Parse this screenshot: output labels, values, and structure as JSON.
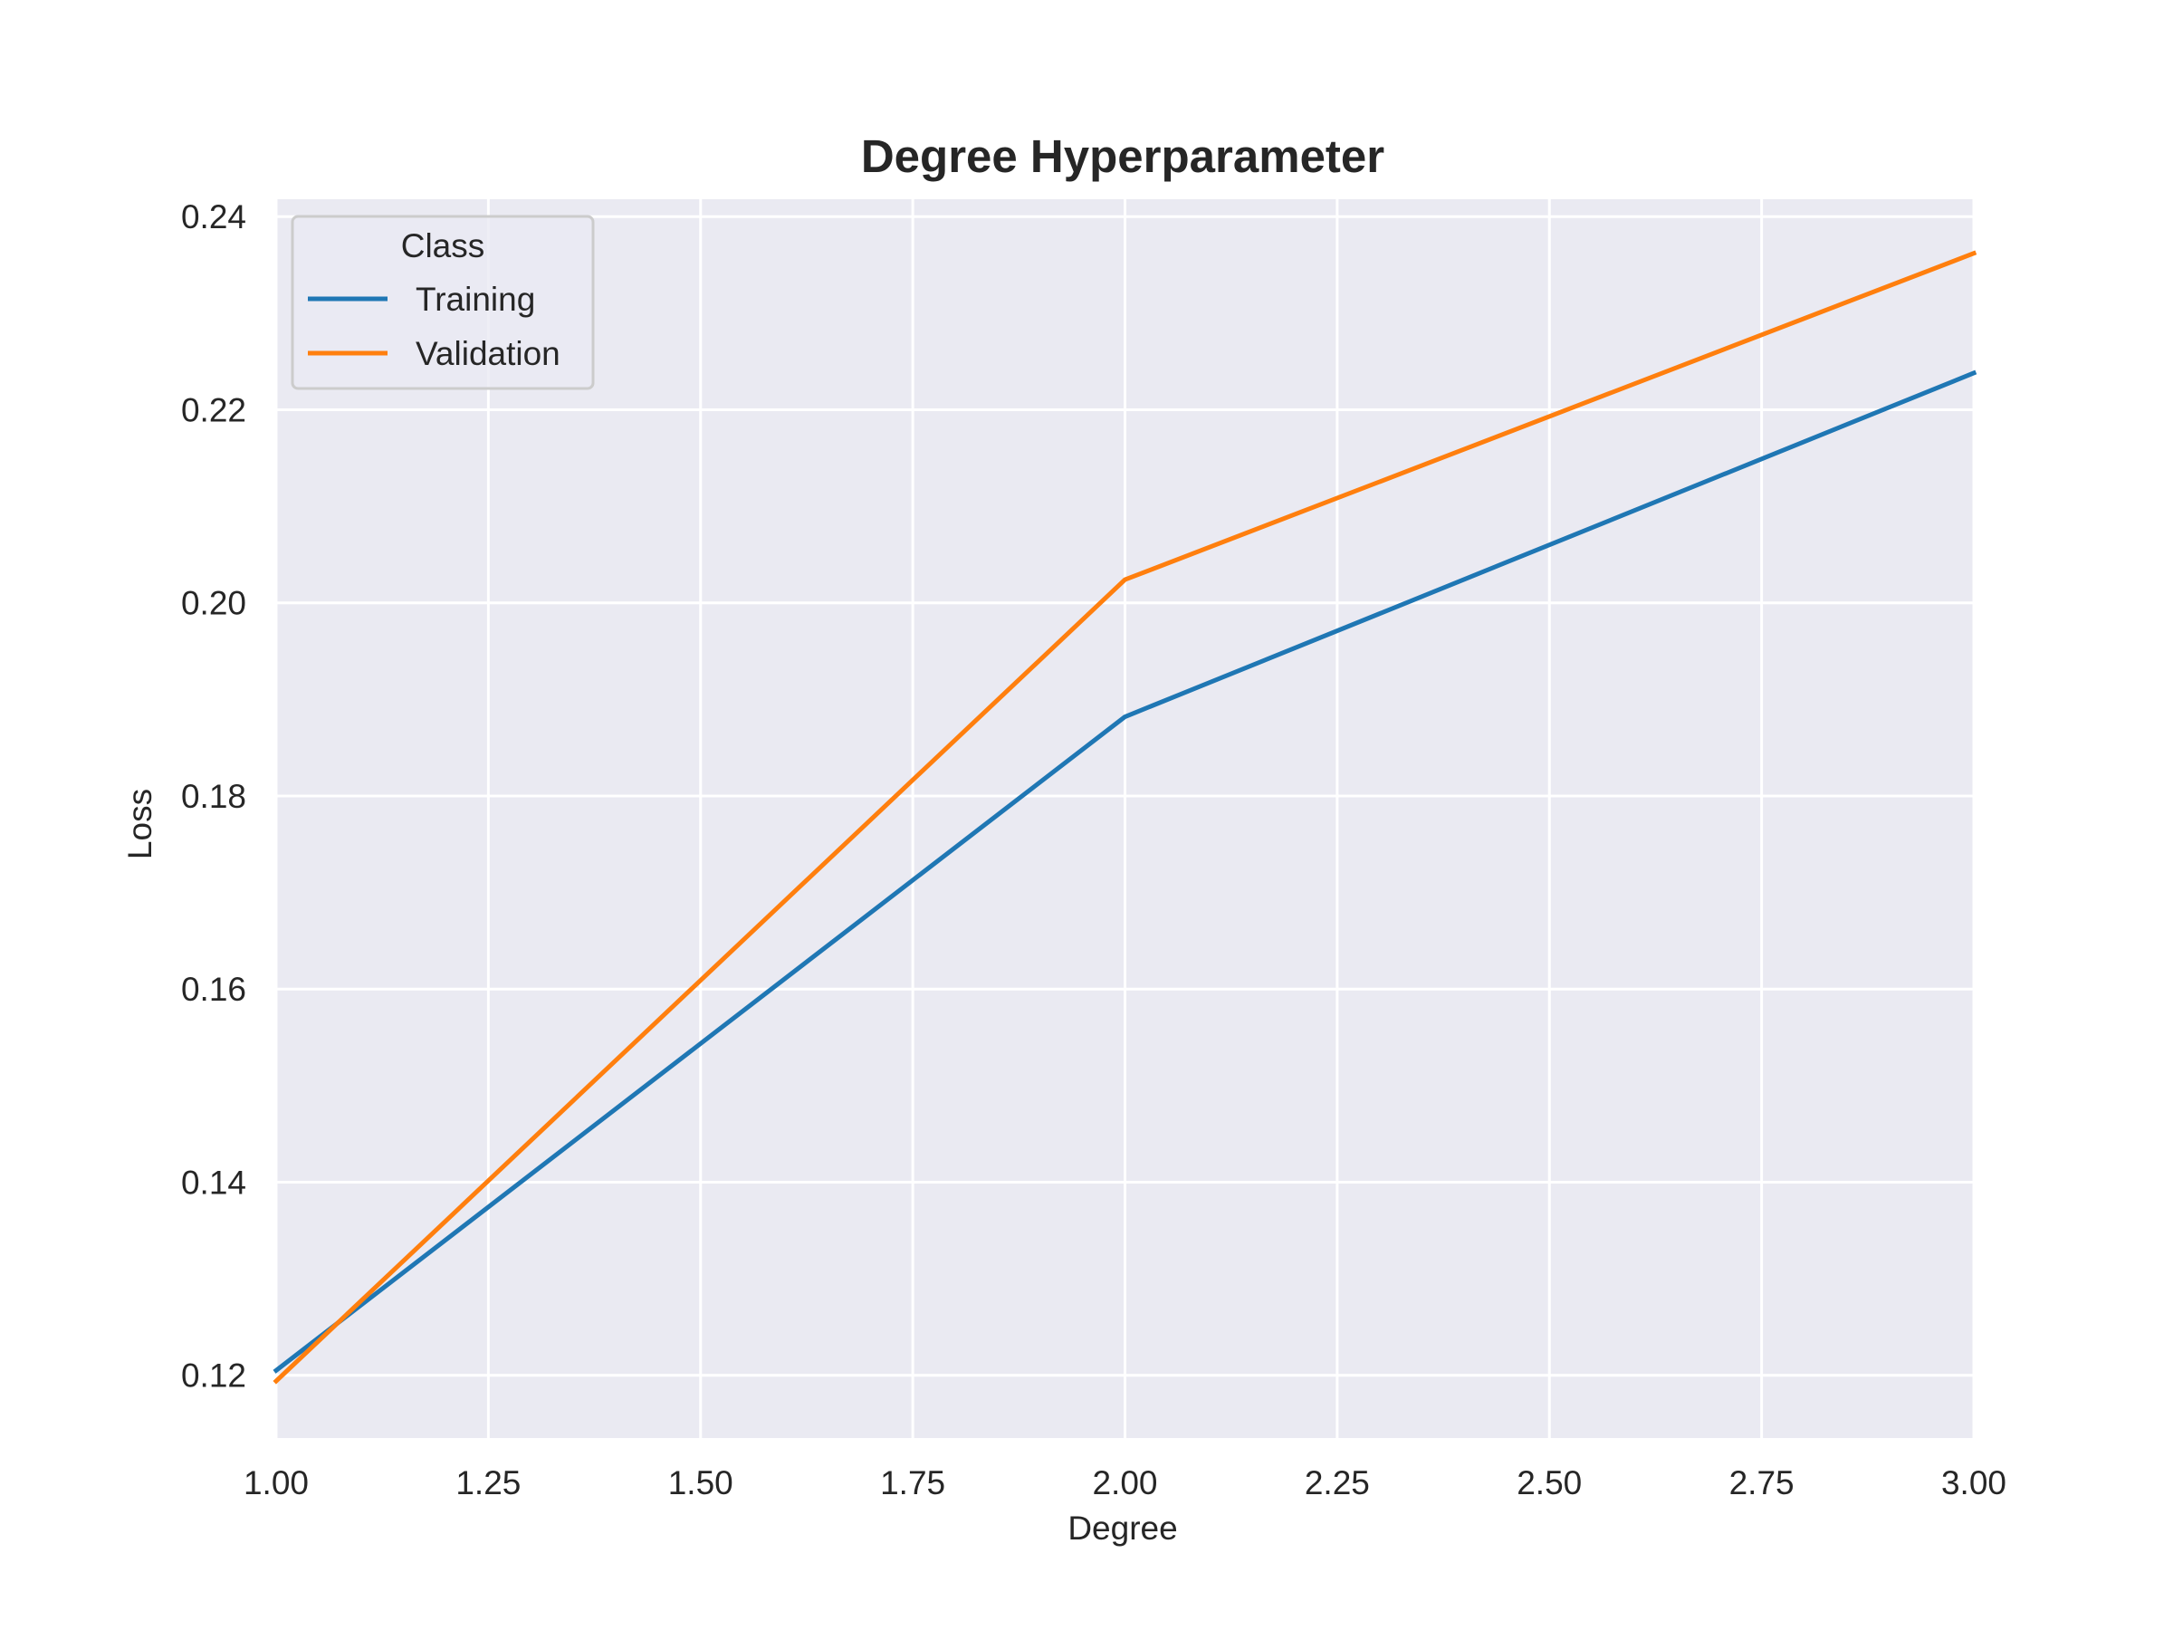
{
  "chart_data": {
    "type": "line",
    "title": "Degree Hyperparameter",
    "xlabel": "Degree",
    "ylabel": "Loss",
    "x": [
      1,
      2,
      3
    ],
    "series": [
      {
        "name": "Training",
        "values": [
          0.1205,
          0.1882,
          0.2238
        ]
      },
      {
        "name": "Validation",
        "values": [
          0.1194,
          0.2024,
          0.2362
        ]
      }
    ],
    "xlim": [
      1.0,
      3.0
    ],
    "ylim": [
      0.1135,
      0.2418
    ],
    "xticks": [
      "1.00",
      "1.25",
      "1.50",
      "1.75",
      "2.00",
      "2.25",
      "2.50",
      "2.75",
      "3.00"
    ],
    "yticks": [
      "0.12",
      "0.14",
      "0.16",
      "0.18",
      "0.20",
      "0.22",
      "0.24"
    ],
    "legend": {
      "title": "Class",
      "placement": "top-left"
    },
    "grid": true,
    "colors": {
      "Training": "#1f77b4",
      "Validation": "#ff7f0e",
      "plot_background": "#eaeaf2",
      "grid": "#ffffff"
    }
  }
}
